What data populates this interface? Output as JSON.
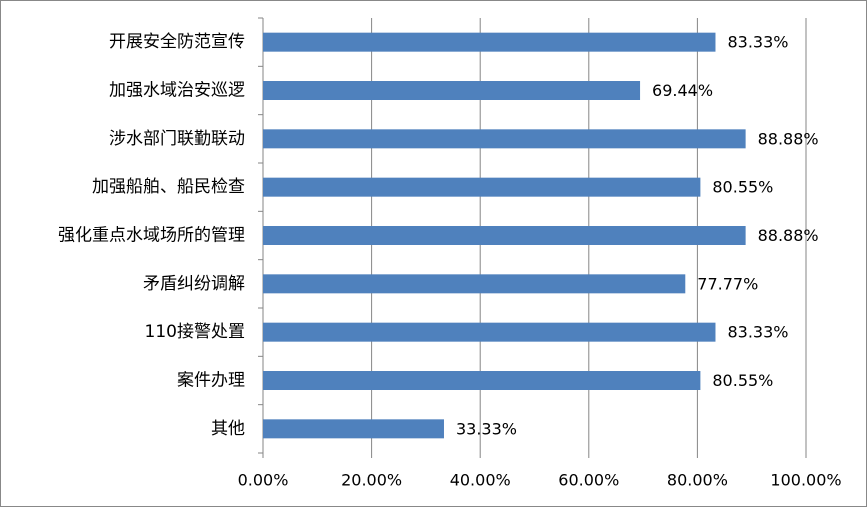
{
  "chart_data": {
    "type": "bar",
    "orientation": "horizontal",
    "categories": [
      "开展安全防范宣传",
      "加强水域治安巡逻",
      "涉水部门联勤联动",
      "加强船舶、船民检查",
      "强化重点水域场所的管理",
      "矛盾纠纷调解",
      "110接警处置",
      "案件办理",
      "其他"
    ],
    "values": [
      83.33,
      69.44,
      88.88,
      80.55,
      88.88,
      77.77,
      83.33,
      80.55,
      33.33
    ],
    "value_labels": [
      "83.33%",
      "69.44%",
      "88.88%",
      "80.55%",
      "88.88%",
      "77.77%",
      "83.33%",
      "80.55%",
      "33.33%"
    ],
    "color": "#4f81bd",
    "xlim": [
      0,
      100
    ],
    "xticks": [
      {
        "value": 0,
        "label": "0.00%"
      },
      {
        "value": 20,
        "label": "20.00%"
      },
      {
        "value": 40,
        "label": "40.00%"
      },
      {
        "value": 60,
        "label": "60.00%"
      },
      {
        "value": 80,
        "label": "80.00%"
      },
      {
        "value": 100,
        "label": "100.00%"
      }
    ],
    "grid": true
  }
}
